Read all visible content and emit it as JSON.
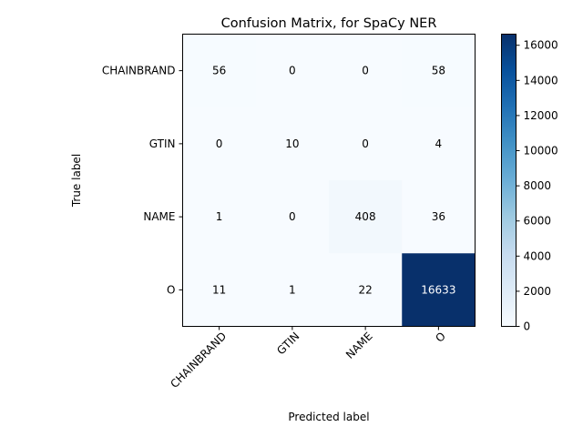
{
  "chart_data": {
    "type": "heatmap",
    "title": "Confusion Matrix, for SpaCy NER",
    "xlabel": "Predicted label",
    "ylabel": "True label",
    "x_categories": [
      "CHAINBRAND",
      "GTIN",
      "NAME",
      "O"
    ],
    "y_categories": [
      "CHAINBRAND",
      "GTIN",
      "NAME",
      "O"
    ],
    "values": [
      [
        56,
        0,
        0,
        58
      ],
      [
        0,
        10,
        0,
        4
      ],
      [
        1,
        0,
        408,
        36
      ],
      [
        11,
        1,
        22,
        16633
      ]
    ],
    "colormap": "Blues",
    "color_low": "#f7fbff",
    "color_high": "#08306b",
    "colorbar": {
      "min": 0,
      "max": 16633,
      "ticks": [
        "0",
        "2000",
        "4000",
        "6000",
        "8000",
        "10000",
        "12000",
        "14000",
        "16000"
      ]
    },
    "grid": false
  }
}
